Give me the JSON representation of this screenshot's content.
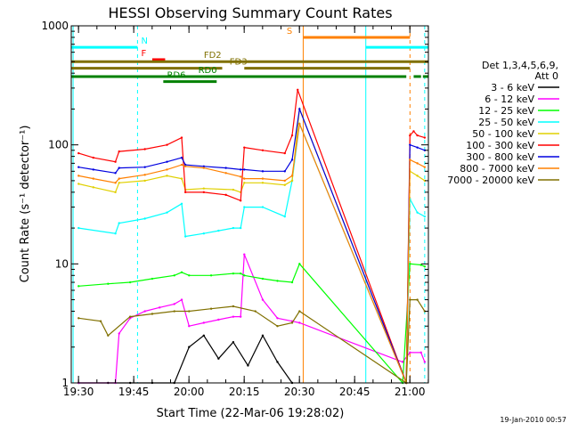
{
  "chart_data": {
    "type": "line",
    "title": "HESSI Observing Summary Count Rates",
    "xlabel": "Start Time (22-Mar-06 19:28:02)",
    "ylabel": "Count Rate (s⁻¹ detector⁻¹)",
    "x_tick_labels": [
      "19:30",
      "19:45",
      "20:00",
      "20:15",
      "20:30",
      "20:45",
      "21:00"
    ],
    "x_tick_minutes": [
      1.97,
      16.97,
      31.97,
      46.97,
      61.97,
      76.97,
      91.97
    ],
    "y_scale": "log",
    "ylim": [
      1,
      1000
    ],
    "y_tick_labels": [
      "1",
      "10",
      "100",
      "1000"
    ],
    "y_tick_values": [
      1,
      10,
      100,
      1000
    ],
    "xlim_minutes": [
      0,
      97
    ],
    "legend": {
      "placement": "right",
      "header": [
        "Det 1,3,4,5,6,9,",
        "Att 0"
      ],
      "entries": [
        {
          "label": "3 - 6 keV",
          "color": "#000000"
        },
        {
          "label": "6 - 12 keV",
          "color": "#ff00ff"
        },
        {
          "label": "12 - 25 keV",
          "color": "#00ff00"
        },
        {
          "label": "25 - 50 keV",
          "color": "#00ffff"
        },
        {
          "label": "50 - 100 keV",
          "color": "#e0d000"
        },
        {
          "label": "100 - 300 keV",
          "color": "#ff0000"
        },
        {
          "label": "300 - 800 keV",
          "color": "#0000e0"
        },
        {
          "label": "800 - 7000 keV",
          "color": "#ff8000"
        },
        {
          "label": "7000 - 20000 keV",
          "color": "#807000"
        }
      ]
    },
    "vertical_markers": [
      {
        "minute": 0.5,
        "color": "#00ffff",
        "style": "solid"
      },
      {
        "minute": 18.0,
        "color": "#00ffff",
        "style": "dashed"
      },
      {
        "minute": 63.0,
        "color": "#ff8000",
        "style": "solid"
      },
      {
        "minute": 80.0,
        "color": "#00ffff",
        "style": "solid"
      },
      {
        "minute": 92.0,
        "color": "#ff8000",
        "style": "dashed"
      },
      {
        "minute": 96.0,
        "color": "#00ffff",
        "style": "dashed"
      }
    ],
    "flag_bars": [
      {
        "label": "N",
        "color": "#00ffff",
        "y": 660,
        "segments": [
          [
            0,
            18
          ],
          [
            80,
            97
          ]
        ],
        "label_minute": 19.0
      },
      {
        "label": "S",
        "color": "#ff8000",
        "y": 800,
        "segments": [
          [
            63,
            92
          ]
        ],
        "label_minute": 58.5
      },
      {
        "label": "F",
        "color": "#ff0000",
        "y": 520,
        "segments": [
          [
            22,
            25.5
          ]
        ],
        "label_minute": 19.0
      },
      {
        "label": "FD2",
        "color": "#807000",
        "y": 500,
        "segments": [
          [
            0,
            97
          ]
        ],
        "label_minute": 36.0
      },
      {
        "label": "FD3",
        "color": "#807000",
        "y": 440,
        "segments": [
          [
            0,
            41
          ],
          [
            47,
            92
          ]
        ],
        "label_minute": 43.0
      },
      {
        "label": "RD0",
        "color": "#008000",
        "y": 375,
        "segments": [
          [
            0,
            91
          ],
          [
            93,
            95
          ],
          [
            95.5,
            97
          ]
        ],
        "label_minute": 34.5
      },
      {
        "label": "RD6",
        "color": "#008000",
        "y": 340,
        "segments": [
          [
            25,
            39.5
          ]
        ],
        "label_minute": 26.0
      }
    ],
    "series": [
      {
        "name": "3 - 6 keV",
        "color": "#000000",
        "x": [
          2,
          10,
          16,
          22,
          28,
          32,
          36,
          40,
          44,
          48,
          52,
          56,
          60
        ],
        "y": [
          1,
          1,
          1,
          1,
          1,
          2,
          2.5,
          1.6,
          2.2,
          1.4,
          2.5,
          1.5,
          1
        ]
      },
      {
        "name": "6 - 12 keV",
        "color": "#ff00ff",
        "x": [
          2,
          12,
          13,
          16,
          20,
          24,
          28,
          30,
          32,
          36,
          40,
          44,
          46,
          47,
          52,
          56,
          60,
          62,
          90,
          92,
          95,
          96
        ],
        "y": [
          1,
          1,
          2.6,
          3.5,
          4,
          4.3,
          4.6,
          5,
          3,
          3.2,
          3.4,
          3.6,
          3.6,
          12,
          5,
          3.5,
          3.3,
          3.2,
          1.5,
          1.8,
          1.8,
          1.5
        ]
      },
      {
        "name": "12 - 25 keV",
        "color": "#00ff00",
        "x": [
          2,
          10,
          16,
          22,
          28,
          30,
          32,
          38,
          44,
          46,
          47,
          52,
          56,
          60,
          62,
          90,
          92,
          95,
          96
        ],
        "y": [
          6.5,
          6.8,
          7,
          7.5,
          8,
          8.5,
          8,
          8,
          8.3,
          8.3,
          8,
          7.5,
          7.2,
          7,
          10,
          1,
          10,
          9.8,
          9.5
        ]
      },
      {
        "name": "25 - 50 keV",
        "color": "#00ffff",
        "x": [
          2,
          12,
          13,
          20,
          26,
          30,
          31,
          36,
          40,
          44,
          46,
          47,
          52,
          58,
          60,
          62,
          91,
          92,
          94,
          96
        ],
        "y": [
          20,
          18,
          22,
          24,
          27,
          32,
          17,
          18,
          19,
          20,
          20,
          30,
          30,
          25,
          50,
          150,
          1,
          35,
          27,
          25
        ]
      },
      {
        "name": "50 - 100 keV",
        "color": "#e0d000",
        "x": [
          2,
          6,
          12,
          13,
          20,
          26,
          30,
          31,
          36,
          44,
          46,
          47,
          52,
          58,
          60,
          62,
          91,
          92,
          94,
          96
        ],
        "y": [
          47,
          44,
          40,
          48,
          50,
          55,
          52,
          42,
          43,
          42,
          40,
          48,
          48,
          46,
          50,
          200,
          1,
          60,
          55,
          50
        ]
      },
      {
        "name": "100 - 300 keV",
        "color": "#ff0000",
        "x": [
          2,
          6,
          12,
          13,
          20,
          26,
          30,
          31,
          36,
          42,
          46,
          47,
          52,
          58,
          60,
          61.5,
          91,
          92,
          93,
          94,
          96
        ],
        "y": [
          85,
          78,
          72,
          88,
          92,
          100,
          115,
          40,
          40,
          38,
          34,
          95,
          90,
          85,
          120,
          290,
          1,
          120,
          130,
          120,
          115
        ]
      },
      {
        "name": "300 - 800 keV",
        "color": "#0000e0",
        "x": [
          2,
          6,
          12,
          13,
          20,
          26,
          30,
          31,
          36,
          42,
          46,
          47,
          52,
          58,
          60,
          62,
          91,
          92,
          94,
          96
        ],
        "y": [
          65,
          62,
          58,
          64,
          65,
          72,
          78,
          68,
          66,
          64,
          62,
          62,
          60,
          60,
          75,
          200,
          1,
          100,
          95,
          90
        ]
      },
      {
        "name": "800 - 7000 keV",
        "color": "#ff8000",
        "x": [
          2,
          6,
          12,
          13,
          20,
          26,
          30,
          31,
          36,
          42,
          46,
          47,
          52,
          58,
          60,
          62,
          91,
          92,
          94,
          96
        ],
        "y": [
          55,
          52,
          48,
          52,
          56,
          62,
          68,
          66,
          64,
          58,
          54,
          52,
          52,
          50,
          55,
          150,
          1,
          75,
          70,
          65
        ]
      },
      {
        "name": "7000 - 20000 keV",
        "color": "#807000",
        "x": [
          2,
          8,
          10,
          16,
          22,
          28,
          32,
          38,
          44,
          50,
          56,
          60,
          62,
          91,
          92,
          94,
          96
        ],
        "y": [
          3.5,
          3.3,
          2.5,
          3.6,
          3.8,
          4,
          4,
          4.2,
          4.4,
          4,
          3,
          3.2,
          4,
          1,
          5,
          5,
          4
        ]
      }
    ]
  },
  "footer": {
    "date_stamp": "19-Jan-2010 00:57"
  }
}
